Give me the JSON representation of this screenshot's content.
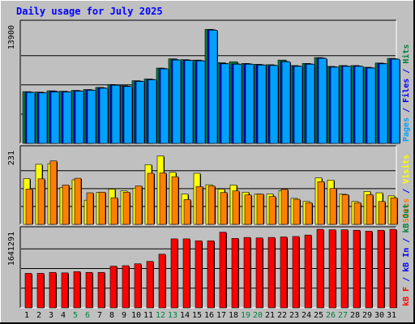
{
  "chart_data": {
    "title": "Daily usage for July 2025",
    "x": [
      "1",
      "2",
      "3",
      "4",
      "5",
      "6",
      "7",
      "8",
      "9",
      "10",
      "11",
      "12",
      "13",
      "14",
      "15",
      "16",
      "17",
      "18",
      "19",
      "20",
      "21",
      "22",
      "23",
      "24",
      "25",
      "26",
      "27",
      "28",
      "29",
      "30",
      "31"
    ],
    "weekend_days": [
      "5",
      "6",
      "12",
      "13",
      "19",
      "20",
      "26",
      "27"
    ],
    "panels": [
      {
        "type": "bar",
        "max_label": "13900",
        "ymax": 13900,
        "legend": [
          {
            "text": "Pages",
            "color": "#00a0ff"
          },
          {
            "text": " / ",
            "color": "#0000ff"
          },
          {
            "text": "Files",
            "color": "#0000ff"
          },
          {
            "text": " / ",
            "color": "#0000ff"
          },
          {
            "text": "Hits",
            "color": "#008040"
          }
        ],
        "series": [
          {
            "name": "Hits",
            "color": "#008040",
            "values": [
              6150,
              6100,
              6250,
              6200,
              6300,
              6400,
              6650,
              7000,
              6850,
              7450,
              7650,
              8950,
              10050,
              9950,
              9900,
              13550,
              9600,
              9700,
              9500,
              9400,
              9350,
              9900,
              9250,
              9500,
              10200,
              9150,
              9250,
              9250,
              9050,
              9550,
              10100
            ]
          },
          {
            "name": "Files",
            "color": "#0000ff",
            "values": [
              6100,
              6050,
              6200,
              6150,
              6250,
              6350,
              6600,
              6950,
              6800,
              7400,
              7600,
              8900,
              9950,
              9900,
              9850,
              13500,
              9500,
              9450,
              9450,
              9350,
              9300,
              9750,
              9200,
              9450,
              10150,
              9100,
              9200,
              9200,
              9000,
              9500,
              10050
            ]
          },
          {
            "name": "Pages",
            "color": "#00a0ff",
            "values": [
              6050,
              6000,
              6100,
              6100,
              6200,
              6300,
              6550,
              6900,
              6750,
              7350,
              7550,
              8850,
              9900,
              9850,
              9800,
              13450,
              9450,
              9400,
              9400,
              9300,
              9250,
              9700,
              9150,
              9400,
              10100,
              9050,
              9150,
              9150,
              8950,
              9450,
              10000
            ]
          }
        ]
      },
      {
        "type": "bar",
        "max_label": "231",
        "ymax": 231,
        "legend": [
          {
            "text": "Sites",
            "color": "#ff8000"
          },
          {
            "text": " / ",
            "color": "#0000ff"
          },
          {
            "text": "Visits",
            "color": "#ffff00"
          }
        ],
        "series": [
          {
            "name": "Visits",
            "color": "#ffff00",
            "values": [
              148,
              194,
              196,
              119,
              144,
              78,
              104,
              114,
              108,
              117,
              193,
              221,
              168,
              98,
              165,
              128,
              114,
              127,
              104,
              98,
              98,
              109,
              84,
              74,
              150,
              143,
              98,
              74,
              106,
              102,
              92
            ]
          },
          {
            "name": "Sites",
            "color": "#ff8000",
            "values": [
              114,
              147,
              205,
              127,
              149,
              102,
              104,
              86,
              104,
              124,
              165,
              166,
              154,
              80,
              122,
              124,
              103,
              108,
              95,
              98,
              90,
              113,
              81,
              70,
              138,
              116,
              96,
              70,
              96,
              74,
              86
            ]
          }
        ]
      },
      {
        "type": "bar",
        "max_label": "1641291",
        "ymax": 1641291,
        "legend": [
          {
            "text": "kB F",
            "color": "#ff0000"
          },
          {
            "text": " / ",
            "color": "#0000ff"
          },
          {
            "text": "kB In",
            "color": "#0000ff"
          },
          {
            "text": " / ",
            "color": "#0000ff"
          },
          {
            "text": "kB Out",
            "color": "#008040"
          }
        ],
        "series": [
          {
            "name": "kB F",
            "color": "#ff0000",
            "values": [
              720000,
              720000,
              740000,
              730000,
              755000,
              740000,
              740000,
              870000,
              880000,
              920000,
              970000,
              1120000,
              1440000,
              1440000,
              1400000,
              1400000,
              1580000,
              1450000,
              1470000,
              1460000,
              1470000,
              1480000,
              1490000,
              1520000,
              1640000,
              1630000,
              1630000,
              1620000,
              1600000,
              1620000,
              1640000
            ]
          }
        ]
      }
    ]
  }
}
